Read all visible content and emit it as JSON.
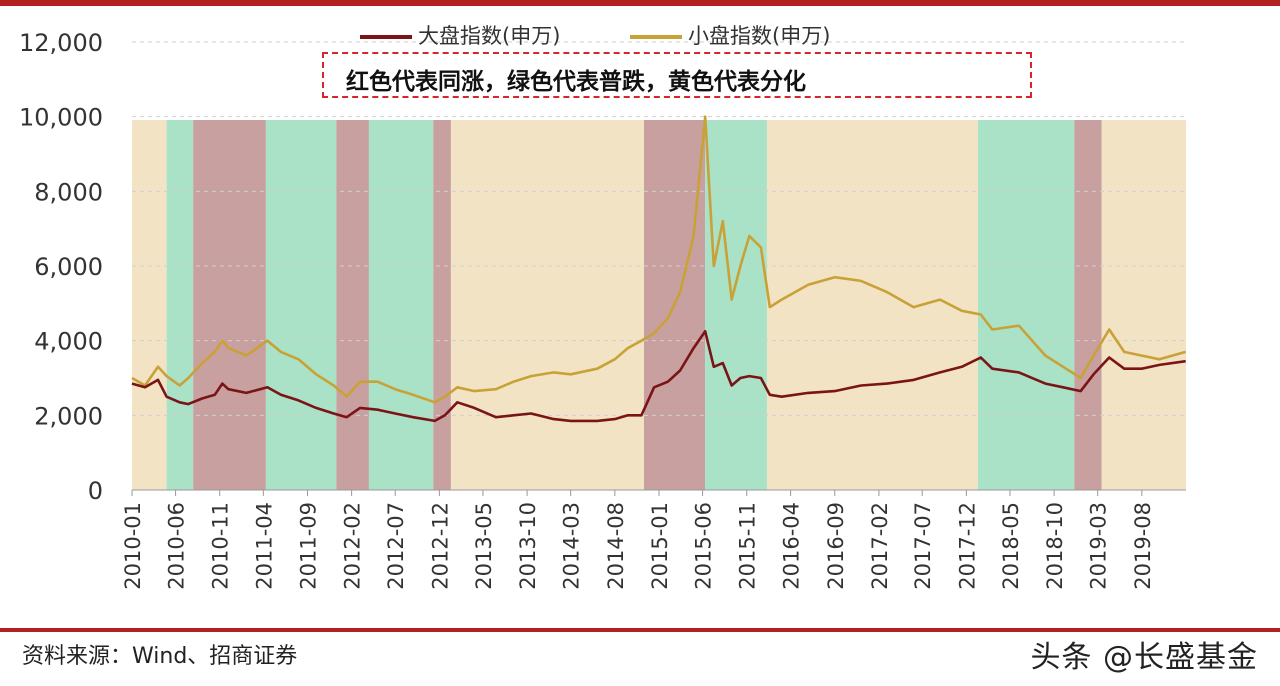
{
  "chart_data": {
    "type": "line",
    "title": "",
    "xlabel": "",
    "ylabel": "",
    "ylim": [
      0,
      12000
    ],
    "yticks": [
      "0",
      "2,000",
      "4,000",
      "6,000",
      "8,000",
      "10,000",
      "12,000"
    ],
    "yticks_values": [
      0,
      2000,
      4000,
      6000,
      8000,
      10000,
      12000
    ],
    "xticks": [
      "2010-01",
      "2010-06",
      "2010-11",
      "2011-04",
      "2011-09",
      "2012-02",
      "2012-07",
      "2012-12",
      "2013-05",
      "2013-10",
      "2014-03",
      "2014-08",
      "2015-01",
      "2015-06",
      "2015-11",
      "2016-04",
      "2016-09",
      "2017-02",
      "2017-07",
      "2017-12",
      "2018-05",
      "2018-10",
      "2019-03",
      "2019-08"
    ],
    "xlim": [
      "2010-01",
      "2020-01"
    ],
    "grid": "horizontal-dashed",
    "legend_position": "top",
    "series": [
      {
        "name": "大盘指数(申万)",
        "color": "#7a1416",
        "points": [
          [
            "2010-01-01",
            2850
          ],
          [
            "2010-02-15",
            2750
          ],
          [
            "2010-04-01",
            2950
          ],
          [
            "2010-05-01",
            2500
          ],
          [
            "2010-06-15",
            2350
          ],
          [
            "2010-07-15",
            2300
          ],
          [
            "2010-09-01",
            2450
          ],
          [
            "2010-10-15",
            2550
          ],
          [
            "2010-11-10",
            2850
          ],
          [
            "2010-12-01",
            2700
          ],
          [
            "2011-02-01",
            2600
          ],
          [
            "2011-04-15",
            2750
          ],
          [
            "2011-06-01",
            2550
          ],
          [
            "2011-08-01",
            2400
          ],
          [
            "2011-10-01",
            2200
          ],
          [
            "2011-12-01",
            2050
          ],
          [
            "2012-01-15",
            1950
          ],
          [
            "2012-03-01",
            2200
          ],
          [
            "2012-05-01",
            2150
          ],
          [
            "2012-07-01",
            2050
          ],
          [
            "2012-09-01",
            1950
          ],
          [
            "2012-11-15",
            1850
          ],
          [
            "2012-12-20",
            2000
          ],
          [
            "2013-02-01",
            2350
          ],
          [
            "2013-04-01",
            2200
          ],
          [
            "2013-06-15",
            1950
          ],
          [
            "2013-08-15",
            2000
          ],
          [
            "2013-10-15",
            2050
          ],
          [
            "2014-01-01",
            1900
          ],
          [
            "2014-03-01",
            1850
          ],
          [
            "2014-06-01",
            1850
          ],
          [
            "2014-08-01",
            1900
          ],
          [
            "2014-09-15",
            2000
          ],
          [
            "2014-11-01",
            2000
          ],
          [
            "2014-12-15",
            2750
          ],
          [
            "2015-02-01",
            2900
          ],
          [
            "2015-03-15",
            3200
          ],
          [
            "2015-05-01",
            3800
          ],
          [
            "2015-06-10",
            4250
          ],
          [
            "2015-07-10",
            3300
          ],
          [
            "2015-08-10",
            3400
          ],
          [
            "2015-09-10",
            2800
          ],
          [
            "2015-10-10",
            3000
          ],
          [
            "2015-11-10",
            3050
          ],
          [
            "2015-12-20",
            3000
          ],
          [
            "2016-01-20",
            2550
          ],
          [
            "2016-03-01",
            2500
          ],
          [
            "2016-06-01",
            2600
          ],
          [
            "2016-09-01",
            2650
          ],
          [
            "2016-12-01",
            2800
          ],
          [
            "2017-03-01",
            2850
          ],
          [
            "2017-06-01",
            2950
          ],
          [
            "2017-09-01",
            3150
          ],
          [
            "2017-11-15",
            3300
          ],
          [
            "2018-01-20",
            3550
          ],
          [
            "2018-03-01",
            3250
          ],
          [
            "2018-06-01",
            3150
          ],
          [
            "2018-09-01",
            2850
          ],
          [
            "2018-11-01",
            2750
          ],
          [
            "2019-01-01",
            2650
          ],
          [
            "2019-02-15",
            3100
          ],
          [
            "2019-04-10",
            3550
          ],
          [
            "2019-06-01",
            3250
          ],
          [
            "2019-08-01",
            3250
          ],
          [
            "2019-10-01",
            3350
          ],
          [
            "2019-12-31",
            3450
          ]
        ]
      },
      {
        "name": "小盘指数(申万)",
        "color": "#c8a237",
        "points": [
          [
            "2010-01-01",
            3000
          ],
          [
            "2010-02-15",
            2800
          ],
          [
            "2010-04-01",
            3300
          ],
          [
            "2010-05-01",
            3050
          ],
          [
            "2010-06-15",
            2800
          ],
          [
            "2010-07-15",
            3000
          ],
          [
            "2010-09-01",
            3400
          ],
          [
            "2010-10-15",
            3700
          ],
          [
            "2010-11-10",
            4000
          ],
          [
            "2010-12-01",
            3800
          ],
          [
            "2011-02-01",
            3600
          ],
          [
            "2011-04-15",
            4000
          ],
          [
            "2011-06-01",
            3700
          ],
          [
            "2011-08-01",
            3500
          ],
          [
            "2011-10-01",
            3100
          ],
          [
            "2011-12-01",
            2800
          ],
          [
            "2012-01-15",
            2500
          ],
          [
            "2012-03-01",
            2900
          ],
          [
            "2012-05-01",
            2900
          ],
          [
            "2012-07-01",
            2700
          ],
          [
            "2012-09-01",
            2550
          ],
          [
            "2012-11-15",
            2350
          ],
          [
            "2012-12-20",
            2500
          ],
          [
            "2013-02-01",
            2750
          ],
          [
            "2013-04-01",
            2650
          ],
          [
            "2013-06-15",
            2700
          ],
          [
            "2013-08-15",
            2900
          ],
          [
            "2013-10-15",
            3050
          ],
          [
            "2014-01-01",
            3150
          ],
          [
            "2014-03-01",
            3100
          ],
          [
            "2014-06-01",
            3250
          ],
          [
            "2014-08-01",
            3500
          ],
          [
            "2014-09-15",
            3800
          ],
          [
            "2014-11-01",
            4000
          ],
          [
            "2014-12-15",
            4200
          ],
          [
            "2015-02-01",
            4600
          ],
          [
            "2015-03-15",
            5300
          ],
          [
            "2015-05-01",
            6800
          ],
          [
            "2015-06-10",
            10000
          ],
          [
            "2015-07-10",
            6000
          ],
          [
            "2015-08-10",
            7200
          ],
          [
            "2015-09-10",
            5100
          ],
          [
            "2015-10-10",
            6000
          ],
          [
            "2015-11-10",
            6800
          ],
          [
            "2015-12-20",
            6500
          ],
          [
            "2016-01-20",
            4900
          ],
          [
            "2016-03-01",
            5100
          ],
          [
            "2016-06-01",
            5500
          ],
          [
            "2016-09-01",
            5700
          ],
          [
            "2016-12-01",
            5600
          ],
          [
            "2017-03-01",
            5300
          ],
          [
            "2017-06-01",
            4900
          ],
          [
            "2017-09-01",
            5100
          ],
          [
            "2017-11-15",
            4800
          ],
          [
            "2018-01-20",
            4700
          ],
          [
            "2018-03-01",
            4300
          ],
          [
            "2018-06-01",
            4400
          ],
          [
            "2018-09-01",
            3600
          ],
          [
            "2018-11-01",
            3300
          ],
          [
            "2019-01-01",
            3000
          ],
          [
            "2019-02-15",
            3600
          ],
          [
            "2019-04-10",
            4300
          ],
          [
            "2019-06-01",
            3700
          ],
          [
            "2019-08-01",
            3600
          ],
          [
            "2019-10-01",
            3500
          ],
          [
            "2019-12-31",
            3700
          ]
        ]
      }
    ],
    "regimes": [
      {
        "start": "2010-01-01",
        "end": "2010-05-01",
        "color": "#f3e3c5"
      },
      {
        "start": "2010-05-01",
        "end": "2010-08-01",
        "color": "#a9e2c7"
      },
      {
        "start": "2010-08-01",
        "end": "2011-04-10",
        "color": "#c9a0a0"
      },
      {
        "start": "2011-04-10",
        "end": "2011-12-10",
        "color": "#a9e2c7"
      },
      {
        "start": "2011-12-10",
        "end": "2012-04-01",
        "color": "#c9a0a0"
      },
      {
        "start": "2012-04-01",
        "end": "2012-11-10",
        "color": "#a9e2c7"
      },
      {
        "start": "2012-11-10",
        "end": "2013-01-10",
        "color": "#c9a0a0"
      },
      {
        "start": "2013-01-10",
        "end": "2014-11-10",
        "color": "#f3e3c5"
      },
      {
        "start": "2014-11-10",
        "end": "2015-06-10",
        "color": "#c9a0a0"
      },
      {
        "start": "2015-06-10",
        "end": "2016-01-10",
        "color": "#a9e2c7"
      },
      {
        "start": "2016-01-10",
        "end": "2018-01-10",
        "color": "#f3e3c5"
      },
      {
        "start": "2018-01-10",
        "end": "2018-12-10",
        "color": "#a9e2c7"
      },
      {
        "start": "2018-12-10",
        "end": "2019-03-15",
        "color": "#c9a0a0"
      },
      {
        "start": "2019-03-15",
        "end": "2020-01-01",
        "color": "#f3e3c5"
      }
    ]
  },
  "annotation": {
    "text": "红色代表同涨，绿色代表普跌，黄色代表分化",
    "border_color": "#d6262b"
  },
  "footer": {
    "source": "资料来源：Wind、招商证券",
    "watermark": "头条 @长盛基金"
  }
}
